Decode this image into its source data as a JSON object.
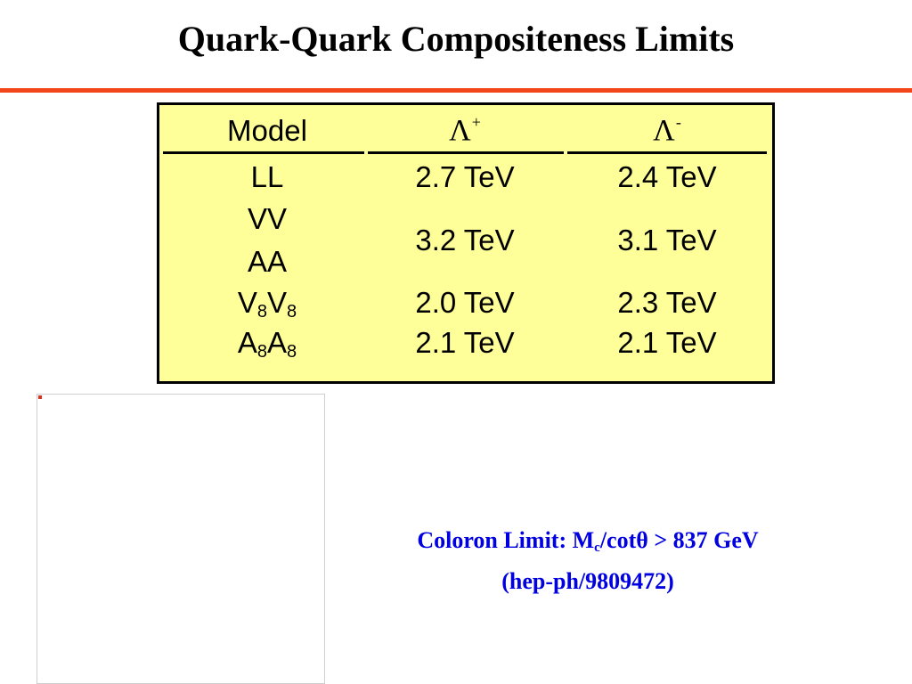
{
  "slide": {
    "title": "Quark-Quark Compositeness Limits"
  },
  "table": {
    "header": {
      "model": "Model",
      "lambda_plus_symbol": "Λ",
      "lambda_plus_sign": "+",
      "lambda_minus_symbol": "Λ",
      "lambda_minus_sign": "-"
    },
    "rows": [
      {
        "model": "LL",
        "plus": "2.7 TeV",
        "minus": "2.4 TeV"
      },
      {
        "model_line1": "VV",
        "model_line2": "AA",
        "plus": "3.2 TeV",
        "minus": "3.1 TeV"
      },
      {
        "model_a": "V",
        "sub_a": "8",
        "model_b": "V",
        "sub_b": "8",
        "plus": "2.0 TeV",
        "minus": "2.3 TeV"
      },
      {
        "model_a": "A",
        "sub_a": "8",
        "model_b": "A",
        "sub_b": "8",
        "plus": "2.1 TeV",
        "minus": "2.1 TeV"
      }
    ],
    "background_color": "#ffff99"
  },
  "coloron": {
    "line1_prefix": "Coloron Limit: M",
    "line1_sub": "c",
    "line1_mid": "/cot",
    "theta": "θ",
    "line1_suffix": " > 837 GeV",
    "line2": "(hep-ph/9809472)",
    "color": "#0000e0"
  },
  "accent_color": "#f2461a"
}
